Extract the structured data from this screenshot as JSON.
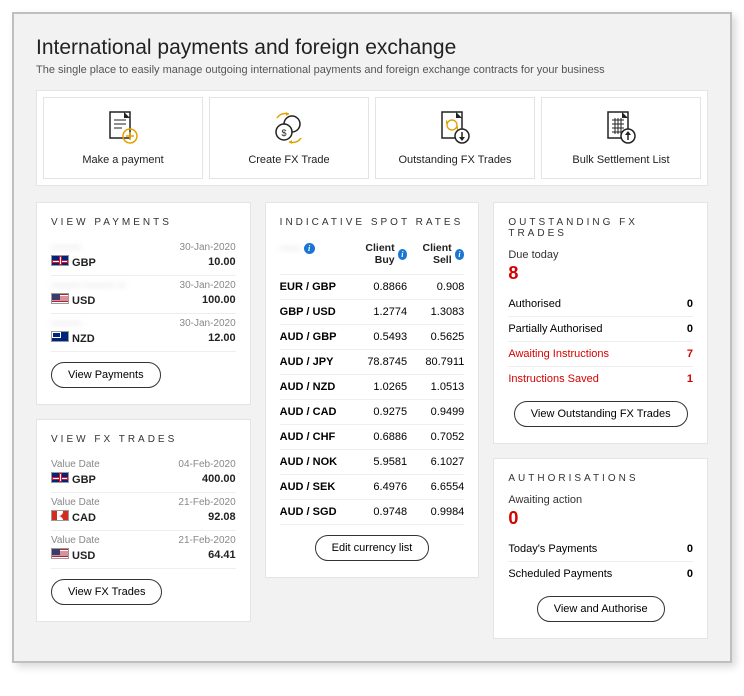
{
  "header": {
    "title": "International payments and foreign exchange",
    "subtitle": "The single place to easily manage outgoing international payments and foreign exchange contracts for your business"
  },
  "actions": [
    {
      "label": "Make a payment"
    },
    {
      "label": "Create FX Trade"
    },
    {
      "label": "Outstanding FX Trades"
    },
    {
      "label": "Bulk Settlement List"
    }
  ],
  "viewPayments": {
    "title": "VIEW PAYMENTS",
    "items": [
      {
        "name": "———",
        "date": "30-Jan-2020",
        "flag": "gbp",
        "ccy": "GBP",
        "amount": "10.00"
      },
      {
        "name": "——— ——— —",
        "date": "30-Jan-2020",
        "flag": "usd",
        "ccy": "USD",
        "amount": "100.00"
      },
      {
        "name": "———",
        "date": "30-Jan-2020",
        "flag": "nzd",
        "ccy": "NZD",
        "amount": "12.00"
      }
    ],
    "button": "View Payments"
  },
  "viewFxTrades": {
    "title": "VIEW FX TRADES",
    "items": [
      {
        "label": "Value Date",
        "date": "04-Feb-2020",
        "flag": "gbp",
        "ccy": "GBP",
        "amount": "400.00"
      },
      {
        "label": "Value Date",
        "date": "21-Feb-2020",
        "flag": "cad",
        "ccy": "CAD",
        "amount": "92.08"
      },
      {
        "label": "Value Date",
        "date": "21-Feb-2020",
        "flag": "usd",
        "ccy": "USD",
        "amount": "64.41"
      }
    ],
    "button": "View FX Trades"
  },
  "spotRates": {
    "title": "INDICATIVE SPOT RATES",
    "col1blur": "——",
    "colBuy": "Client Buy",
    "colSell": "Client Sell",
    "rows": [
      {
        "pair": "EUR / GBP",
        "buy": "0.8866",
        "sell": "0.908"
      },
      {
        "pair": "GBP / USD",
        "buy": "1.2774",
        "sell": "1.3083"
      },
      {
        "pair": "AUD / GBP",
        "buy": "0.5493",
        "sell": "0.5625"
      },
      {
        "pair": "AUD / JPY",
        "buy": "78.8745",
        "sell": "80.7911"
      },
      {
        "pair": "AUD / NZD",
        "buy": "1.0265",
        "sell": "1.0513"
      },
      {
        "pair": "AUD / CAD",
        "buy": "0.9275",
        "sell": "0.9499"
      },
      {
        "pair": "AUD / CHF",
        "buy": "0.6886",
        "sell": "0.7052"
      },
      {
        "pair": "AUD / NOK",
        "buy": "5.9581",
        "sell": "6.1027"
      },
      {
        "pair": "AUD / SEK",
        "buy": "6.4976",
        "sell": "6.6554"
      },
      {
        "pair": "AUD / SGD",
        "buy": "0.9748",
        "sell": "0.9984"
      }
    ],
    "button": "Edit currency list"
  },
  "outstanding": {
    "title": "OUTSTANDING FX TRADES",
    "dueLabel": "Due today",
    "dueCount": "8",
    "rows": [
      {
        "label": "Authorised",
        "value": "0",
        "red": false
      },
      {
        "label": "Partially Authorised",
        "value": "0",
        "red": false
      },
      {
        "label": "Awaiting Instructions",
        "value": "7",
        "red": true
      },
      {
        "label": "Instructions Saved",
        "value": "1",
        "red": true
      }
    ],
    "button": "View Outstanding FX Trades"
  },
  "authorisations": {
    "title": "AUTHORISATIONS",
    "awaitLabel": "Awaiting action",
    "awaitCount": "0",
    "rows": [
      {
        "label": "Today's Payments",
        "value": "0"
      },
      {
        "label": "Scheduled Payments",
        "value": "0"
      }
    ],
    "button": "View and Authorise"
  }
}
